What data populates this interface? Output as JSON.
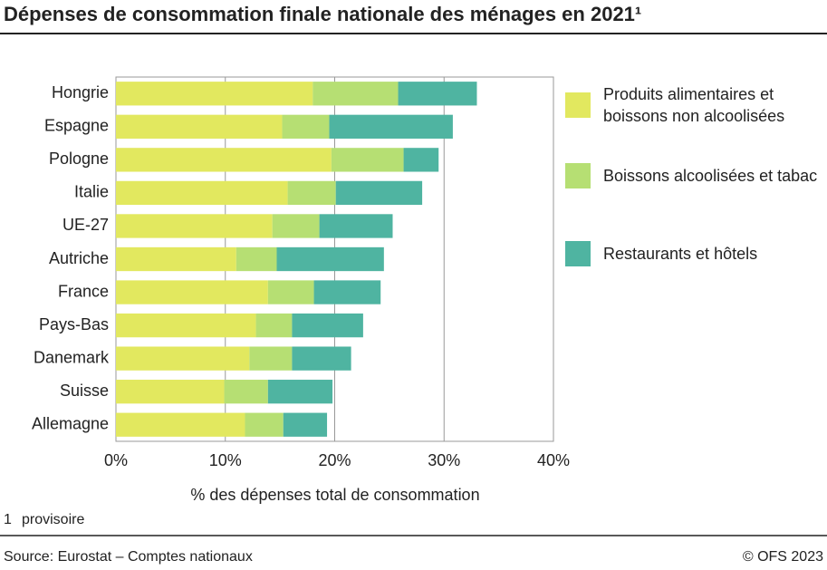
{
  "chart_data": {
    "type": "stacked-bar-horizontal",
    "title": "Dépenses de consommation finale nationale des ménages en 2021¹",
    "xlabel": "% des dépenses total de consommation",
    "categories": [
      "Hongrie",
      "Espagne",
      "Pologne",
      "Italie",
      "UE-27",
      "Autriche",
      "France",
      "Pays-Bas",
      "Danemark",
      "Suisse",
      "Allemagne"
    ],
    "series": [
      {
        "name": "Produits alimentaires et boissons non alcoolisées",
        "color": "#e2e85f",
        "values": [
          18.0,
          15.2,
          19.7,
          15.7,
          14.3,
          11.0,
          13.9,
          12.8,
          12.2,
          9.9,
          11.8
        ]
      },
      {
        "name": "Boissons alcoolisées et tabac",
        "color": "#b6df73",
        "values": [
          7.8,
          4.3,
          6.6,
          4.4,
          4.3,
          3.7,
          4.2,
          3.3,
          3.9,
          4.0,
          3.5
        ]
      },
      {
        "name": "Restaurants et hôtels",
        "color": "#4fb4a1",
        "values": [
          7.2,
          11.3,
          3.2,
          7.9,
          6.7,
          9.8,
          6.1,
          6.5,
          5.4,
          5.9,
          4.0
        ]
      }
    ],
    "xlim": [
      0,
      40
    ],
    "xticks": [
      {
        "value": 0,
        "label": "0%"
      },
      {
        "value": 10,
        "label": "10%"
      },
      {
        "value": 20,
        "label": "20%"
      },
      {
        "value": 30,
        "label": "30%"
      },
      {
        "value": 40,
        "label": "40%"
      }
    ],
    "grid": true,
    "footnote": {
      "marker": "1",
      "text": "provisoire"
    },
    "source": "Source: Eurostat – Comptes nationaux",
    "copyright": "© OFS 2023"
  }
}
